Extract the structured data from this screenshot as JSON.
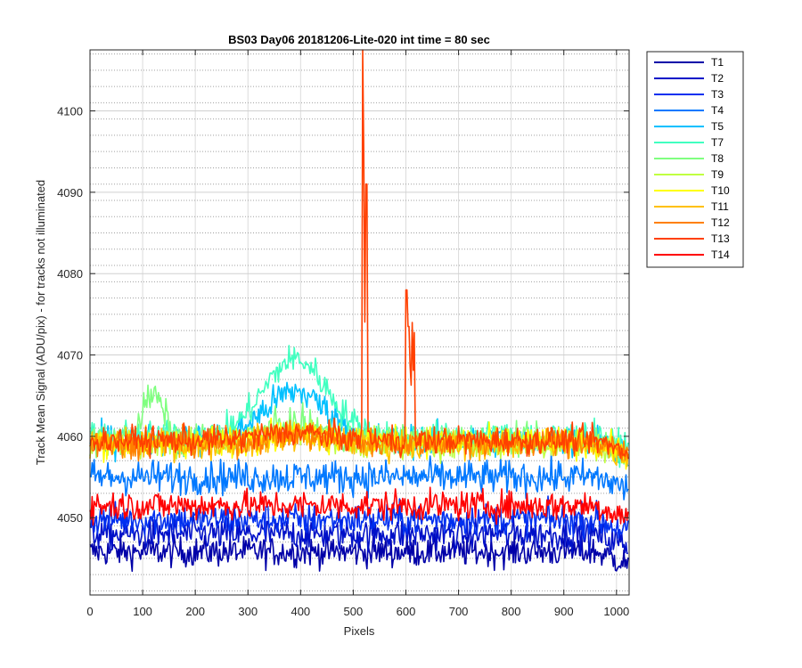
{
  "chart_data": {
    "type": "line",
    "title": "BS03 Day06 20181206-Lite-020 int time = 80 sec",
    "xlabel": "Pixels",
    "ylabel": "Track Mean Signal (ADU/pix) - for tracks not illuminated",
    "xlim": [
      0,
      1024
    ],
    "ylim": [
      4040.5,
      4107.5
    ],
    "xticks": [
      0,
      100,
      200,
      300,
      400,
      500,
      600,
      700,
      800,
      900,
      1000
    ],
    "yticks": [
      4050,
      4060,
      4070,
      4080,
      4090,
      4100
    ],
    "grid": "major and minor (dotted minor on y)",
    "legend_position": "outside top-right",
    "series": [
      {
        "name": "T1",
        "color": "#0000a8",
        "base": 4045.8,
        "noise": 1.3,
        "bump": 0.0,
        "hump": 0
      },
      {
        "name": "T2",
        "color": "#0010c8",
        "base": 4048.0,
        "noise": 1.4,
        "bump": 0.0,
        "hump": 0
      },
      {
        "name": "T3",
        "color": "#0030f0",
        "base": 4049.8,
        "noise": 1.4,
        "bump": 0.0,
        "hump": 0
      },
      {
        "name": "T4",
        "color": "#0078ff",
        "base": 4055.0,
        "noise": 1.5,
        "bump": 0.0,
        "hump": 0
      },
      {
        "name": "T5",
        "color": "#00c0ff",
        "base": 4059.5,
        "noise": 1.4,
        "bump": 6.0,
        "hump": 0
      },
      {
        "name": "T7",
        "color": "#40ffc0",
        "base": 4060.0,
        "noise": 1.3,
        "bump": 9.5,
        "hump": 0
      },
      {
        "name": "T8",
        "color": "#80ff80",
        "base": 4059.5,
        "noise": 1.3,
        "bump": 2.0,
        "hump": 5.5
      },
      {
        "name": "T9",
        "color": "#c0ff40",
        "base": 4059.0,
        "noise": 1.3,
        "bump": 1.5,
        "hump": 0
      },
      {
        "name": "T10",
        "color": "#ffff00",
        "base": 4059.3,
        "noise": 1.3,
        "bump": 1.0,
        "hump": 0
      },
      {
        "name": "T11",
        "color": "#ffc000",
        "base": 4059.0,
        "noise": 1.3,
        "bump": 1.0,
        "hump": 0
      },
      {
        "name": "T12",
        "color": "#ff8000",
        "base": 4059.2,
        "noise": 1.2,
        "bump": 1.0,
        "hump": 0
      },
      {
        "name": "T13",
        "color": "#ff4000",
        "base": 4059.5,
        "noise": 1.2,
        "bump": 1.0,
        "hump": 0
      },
      {
        "name": "T14",
        "color": "#ff0000",
        "base": 4051.5,
        "noise": 1.3,
        "bump": 0.0,
        "hump": 0
      }
    ],
    "spikes": {
      "series": "T13",
      "peaks": [
        {
          "x": 519,
          "y": 4107.5
        },
        {
          "x": 520,
          "y": 4095.0
        },
        {
          "x": 525,
          "y": 4091.0
        },
        {
          "x": 601,
          "y": 4078.0
        },
        {
          "x": 605,
          "y": 4073.5
        },
        {
          "x": 612,
          "y": 4074.0
        }
      ]
    }
  }
}
